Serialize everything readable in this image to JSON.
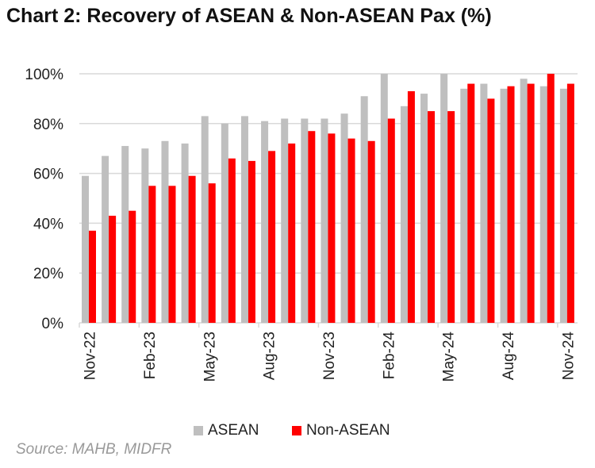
{
  "chart_data": {
    "type": "bar",
    "title": "Chart 2: Recovery of ASEAN & Non-ASEAN Pax (%)",
    "source": "Source: MAHB, MIDFR",
    "categories": [
      "Nov-22",
      "Dec-22",
      "Jan-23",
      "Feb-23",
      "Mar-23",
      "Apr-23",
      "May-23",
      "Jun-23",
      "Jul-23",
      "Aug-23",
      "Sep-23",
      "Oct-23",
      "Nov-23",
      "Dec-23",
      "Jan-24",
      "Feb-24",
      "Mar-24",
      "Apr-24",
      "May-24",
      "Jun-24",
      "Jul-24",
      "Aug-24",
      "Sep-24",
      "Oct-24",
      "Nov-24"
    ],
    "tick_labels": [
      "Nov-22",
      "Feb-23",
      "May-23",
      "Aug-23",
      "Nov-23",
      "Feb-24",
      "May-24",
      "Aug-24",
      "Nov-24"
    ],
    "series": [
      {
        "name": "ASEAN",
        "color": "#bfbfbf",
        "values": [
          59,
          67,
          71,
          70,
          73,
          72,
          83,
          80,
          83,
          81,
          82,
          82,
          82,
          84,
          91,
          100,
          87,
          92,
          100,
          94,
          96,
          94,
          98,
          95,
          94
        ]
      },
      {
        "name": "Non-ASEAN",
        "color": "#ff0000",
        "values": [
          37,
          43,
          45,
          55,
          55,
          59,
          56,
          66,
          65,
          69,
          72,
          77,
          76,
          74,
          73,
          82,
          93,
          85,
          85,
          96,
          90,
          95,
          96,
          100,
          96
        ]
      }
    ],
    "yticks": [
      "0%",
      "20%",
      "40%",
      "60%",
      "80%",
      "100%"
    ],
    "ylim": [
      0,
      100
    ],
    "grid": true,
    "legend": "bottom"
  }
}
